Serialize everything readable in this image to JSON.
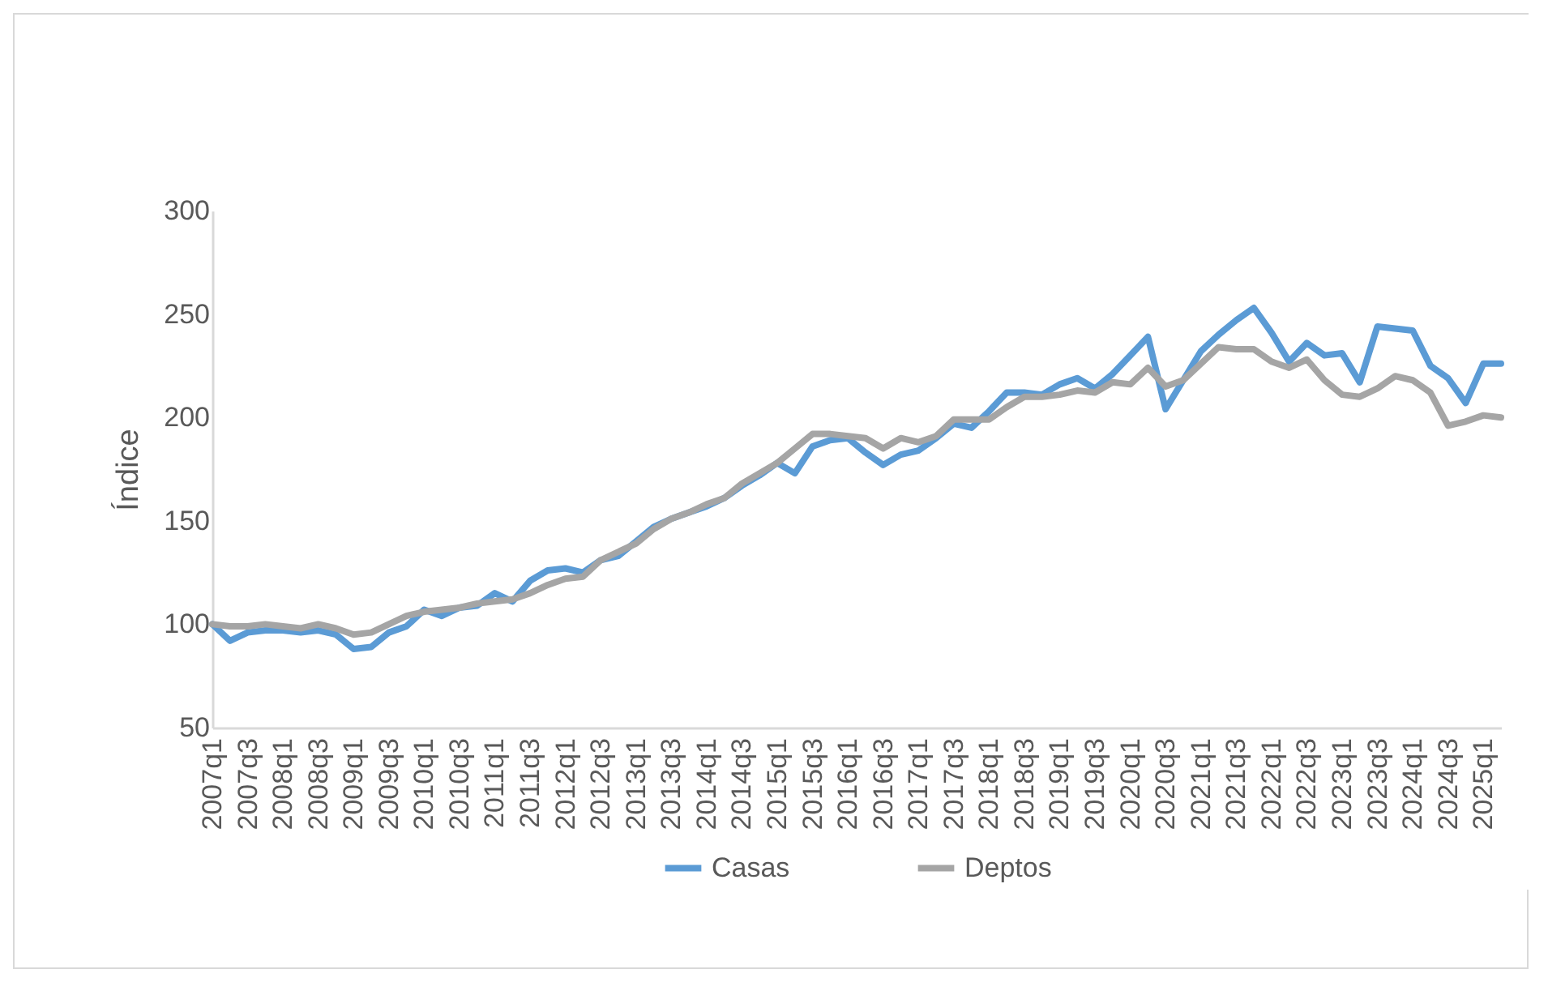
{
  "chart_data": {
    "type": "line",
    "ylabel": "Índice",
    "categories": [
      "2007q1",
      null,
      "2007q3",
      null,
      "2008q1",
      null,
      "2008q3",
      null,
      "2009q1",
      null,
      "2009q3",
      null,
      "2010q1",
      null,
      "2010q3",
      null,
      "2011q1",
      null,
      "2011q3",
      null,
      "2012q1",
      null,
      "2012q3",
      null,
      "2013q1",
      null,
      "2013q3",
      null,
      "2014q1",
      null,
      "2014q3",
      null,
      "2015q1",
      null,
      "2015q3",
      null,
      "2016q1",
      null,
      "2016q3",
      null,
      "2017q1",
      null,
      "2017q3",
      null,
      "2018q1",
      null,
      "2018q3",
      null,
      "2019q1",
      null,
      "2019q3",
      null,
      "2020q1",
      null,
      "2020q3",
      null,
      "2021q1",
      null,
      "2021q3",
      null,
      "2022q1",
      null,
      "2022q3",
      null,
      "2023q1",
      null,
      "2023q3",
      null,
      "2024q1",
      null,
      "2024q3",
      null,
      "2025q1",
      null
    ],
    "series": [
      {
        "name": "Casas",
        "color": "#5b9bd5",
        "values": [
          100,
          92,
          96,
          97,
          97,
          96,
          97,
          95,
          88,
          89,
          96,
          99,
          107,
          104,
          108,
          109,
          115,
          111,
          121,
          126,
          127,
          125,
          131,
          133,
          140,
          147,
          151,
          154,
          157,
          161,
          167,
          172,
          178,
          173,
          186,
          189,
          190,
          183,
          177,
          182,
          184,
          190,
          197,
          195,
          203,
          212,
          212,
          211,
          216,
          219,
          214,
          221,
          230,
          239,
          204,
          218,
          232,
          240,
          247,
          253,
          241,
          227,
          236,
          230,
          231,
          217,
          244,
          243,
          242,
          225,
          219,
          207,
          226,
          226
        ]
      },
      {
        "name": "Deptos",
        "color": "#a5a5a5",
        "values": [
          100,
          99,
          99,
          100,
          99,
          98,
          100,
          98,
          95,
          96,
          100,
          104,
          106,
          107,
          108,
          110,
          111,
          112,
          115,
          119,
          122,
          123,
          131,
          135,
          139,
          146,
          151,
          154,
          158,
          161,
          168,
          173,
          178,
          185,
          192,
          192,
          191,
          190,
          185,
          190,
          188,
          191,
          199,
          199,
          199,
          205,
          210,
          210,
          211,
          213,
          212,
          217,
          216,
          224,
          215,
          218,
          226,
          234,
          233,
          233,
          227,
          224,
          228,
          218,
          211,
          210,
          214,
          220,
          218,
          212,
          196,
          198,
          201,
          200
        ]
      }
    ],
    "ylim": [
      50,
      300
    ],
    "yticks": [
      50,
      100,
      150,
      200,
      250,
      300
    ],
    "legend": "bottom",
    "line_style": "solid"
  }
}
